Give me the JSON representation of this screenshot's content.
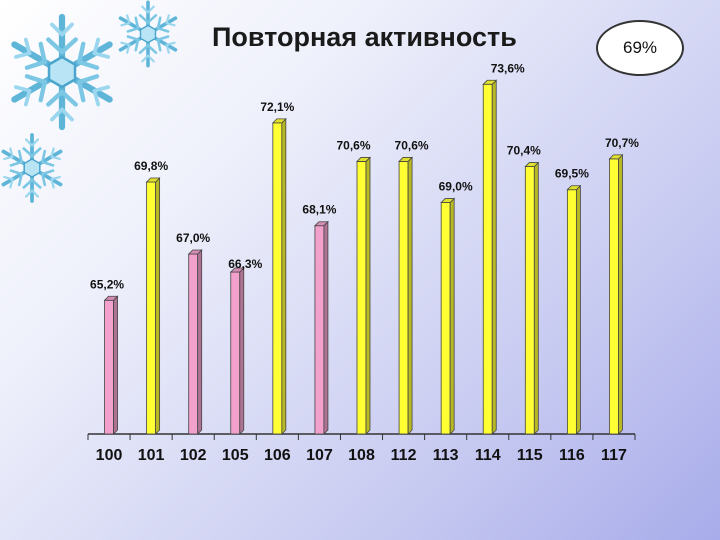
{
  "title": "Повторная активность",
  "badge": "69%",
  "colors": {
    "pink": "#f2a0cc",
    "yellow": "#ffff33",
    "axis": "#333333"
  },
  "icons": [
    "snowflake-large-icon",
    "snowflake-right-icon",
    "snowflake-small-icon"
  ],
  "chart_data": {
    "type": "bar",
    "categories": [
      "100",
      "101",
      "102",
      "105",
      "106",
      "107",
      "108",
      "112",
      "113",
      "114",
      "115",
      "116",
      "117"
    ],
    "values": [
      65.2,
      69.8,
      67.0,
      66.3,
      72.1,
      68.1,
      70.6,
      70.6,
      69.0,
      73.6,
      70.4,
      69.5,
      70.7
    ],
    "labels": [
      "65,2%",
      "69,8%",
      "67,0%",
      "66,3%",
      "72,1%",
      "68,1%",
      "70,6%",
      "70,6%",
      "69,0%",
      "73,6%",
      "70,4%",
      "69,5%",
      "70,7%"
    ],
    "bar_colors": [
      "pink",
      "yellow",
      "pink",
      "pink",
      "yellow",
      "pink",
      "yellow",
      "yellow",
      "yellow",
      "yellow",
      "yellow",
      "yellow",
      "yellow"
    ],
    "ylim": [
      60,
      74
    ],
    "grid": false,
    "legend": "none",
    "xlabel": "",
    "ylabel": ""
  }
}
